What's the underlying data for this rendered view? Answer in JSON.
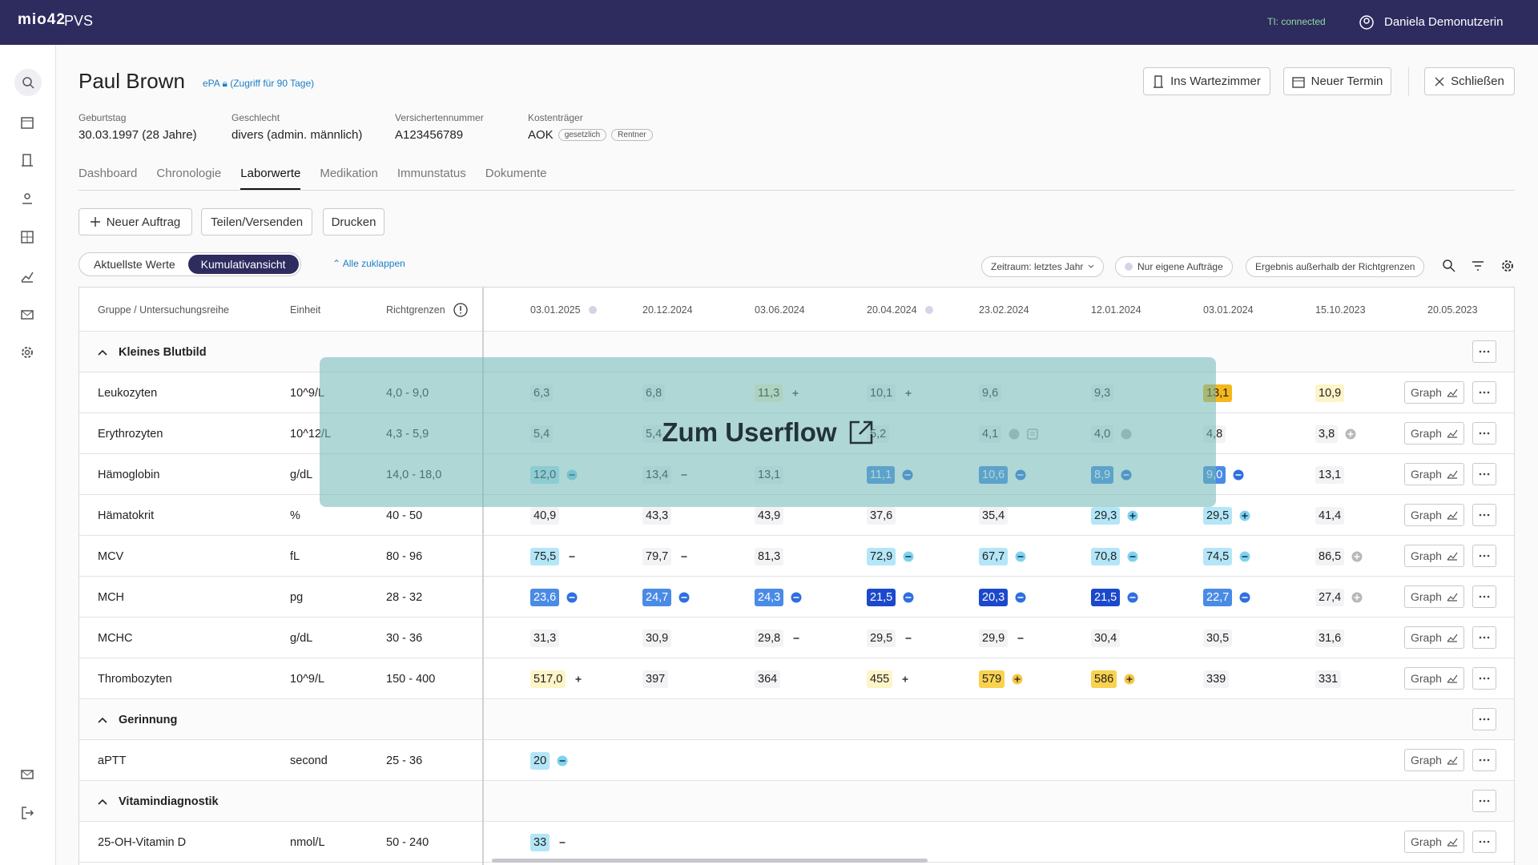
{
  "app": {
    "logo": "mio42",
    "name": "PVS",
    "ti_status": "TI: connected",
    "user": "Daniela Demonutzerin"
  },
  "patient": {
    "name": "Paul Brown",
    "epa": "ePA",
    "epa_access": "(Zugriff für 90 Tage)",
    "fields": [
      {
        "label": "Geburtstag",
        "value": "30.03.1997 (28 Jahre)"
      },
      {
        "label": "Geschlecht",
        "value": "divers (admin. männlich)"
      },
      {
        "label": "Versichertennummer",
        "value": "A123456789"
      },
      {
        "label": "Kostenträger",
        "value": "AOK",
        "badges": [
          "gesetzlich",
          "Rentner"
        ]
      }
    ]
  },
  "actions": [
    "Ins Wartezimmer",
    "Neuer Termin",
    "Schließen"
  ],
  "tabs": [
    {
      "label": "Dashboard"
    },
    {
      "label": "Chronologie"
    },
    {
      "label": "Laborwerte",
      "active": true
    },
    {
      "label": "Medikation"
    },
    {
      "label": "Immunstatus"
    },
    {
      "label": "Dokumente"
    }
  ],
  "toolbar": [
    "Neuer Auftrag",
    "Teilen/Versenden",
    "Drucken"
  ],
  "views": [
    {
      "label": "Aktuellste Werte"
    },
    {
      "label": "Kumulativansicht",
      "active": true
    }
  ],
  "collapse_all": "Alle zuklappen",
  "filters": [
    "Zeitraum: letztes Jahr",
    "Nur eigene Aufträge",
    "Ergebnis außerhalb der Richtgrenzen"
  ],
  "table": {
    "columns": [
      "Gruppe / Untersuchungsreihe",
      "Einheit",
      "Richtgrenzen"
    ],
    "dates": [
      {
        "label": "03.01.2025",
        "dot": true
      },
      {
        "label": "20.12.2024"
      },
      {
        "label": "03.06.2024"
      },
      {
        "label": "20.04.2024",
        "dot": true
      },
      {
        "label": "23.02.2024"
      },
      {
        "label": "12.01.2024"
      },
      {
        "label": "03.01.2024"
      },
      {
        "label": "15.10.2023"
      },
      {
        "label": "20.05.2023"
      }
    ],
    "graph_button": "Graph",
    "groups": [
      {
        "name": "Kleines Blutbild",
        "rows": [
          {
            "name": "Leukozyten",
            "unit": "10^9/L",
            "range": "4,0 - 9,0",
            "values": [
              {
                "v": "6,3"
              },
              {
                "v": "6,8"
              },
              {
                "v": "11,3",
                "level": "h1",
                "icon": "plus"
              },
              {
                "v": "10,1",
                "icon": "plus"
              },
              {
                "v": "9,6"
              },
              {
                "v": "9,3"
              },
              {
                "v": "13,1",
                "level": "h3"
              },
              {
                "v": "10,9",
                "level": "h1"
              },
              null
            ]
          },
          {
            "name": "Erythrozyten",
            "unit": "10^12/L",
            "range": "4,3 - 5,9",
            "values": [
              {
                "v": "5,4"
              },
              {
                "v": "5,4"
              },
              null,
              {
                "v": "5,2"
              },
              {
                "v": "4,1",
                "icon": "circle",
                "note": true
              },
              {
                "v": "4,0",
                "icon": "circle"
              },
              {
                "v": "4,8"
              },
              {
                "v": "3,8",
                "icon": "circle-plus"
              },
              null
            ]
          },
          {
            "name": "Hämoglobin",
            "unit": "g/dL",
            "range": "14,0 - 18,0",
            "values": [
              {
                "v": "12,0",
                "level": "l1",
                "icon": "circle-minus"
              },
              {
                "v": "13,4",
                "icon": "minus"
              },
              {
                "v": "13,1"
              },
              {
                "v": "11,1",
                "level": "l2",
                "icon": "circle-minus"
              },
              {
                "v": "10,6",
                "level": "l2",
                "icon": "circle-minus"
              },
              {
                "v": "8,9",
                "level": "l2",
                "icon": "circle-minus"
              },
              {
                "v": "9,0",
                "level": "l2",
                "icon": "circle-minus"
              },
              {
                "v": "13,1"
              },
              null
            ]
          },
          {
            "name": "Hämatokrit",
            "unit": "%",
            "range": "40 - 50",
            "values": [
              {
                "v": "40,9"
              },
              {
                "v": "43,3"
              },
              {
                "v": "43,9"
              },
              {
                "v": "37,6"
              },
              {
                "v": "35,4"
              },
              {
                "v": "29,3",
                "level": "l1",
                "icon": "circle-plus"
              },
              {
                "v": "29,5",
                "level": "l1",
                "icon": "circle-plus"
              },
              {
                "v": "41,4"
              },
              null
            ]
          },
          {
            "name": "MCV",
            "unit": "fL",
            "range": "80 - 96",
            "values": [
              {
                "v": "75,5",
                "level": "l1",
                "icon": "minus"
              },
              {
                "v": "79,7",
                "icon": "minus"
              },
              {
                "v": "81,3"
              },
              {
                "v": "72,9",
                "level": "l1",
                "icon": "circle-minus"
              },
              {
                "v": "67,7",
                "level": "l1",
                "icon": "circle-minus"
              },
              {
                "v": "70,8",
                "level": "l1",
                "icon": "circle-minus"
              },
              {
                "v": "74,5",
                "level": "l1",
                "icon": "circle-minus"
              },
              {
                "v": "86,5",
                "icon": "circle-plus"
              },
              null
            ]
          },
          {
            "name": "MCH",
            "unit": "pg",
            "range": "28 - 32",
            "values": [
              {
                "v": "23,6",
                "level": "l2",
                "icon": "circle-minus"
              },
              {
                "v": "24,7",
                "level": "l2",
                "icon": "circle-minus"
              },
              {
                "v": "24,3",
                "level": "l2",
                "icon": "circle-minus"
              },
              {
                "v": "21,5",
                "level": "l3",
                "icon": "circle-minus"
              },
              {
                "v": "20,3",
                "level": "l3",
                "icon": "circle-minus"
              },
              {
                "v": "21,5",
                "level": "l3",
                "icon": "circle-minus"
              },
              {
                "v": "22,7",
                "level": "l2",
                "icon": "circle-minus"
              },
              {
                "v": "27,4",
                "icon": "circle-plus"
              },
              null
            ]
          },
          {
            "name": "MCHC",
            "unit": "g/dL",
            "range": "30 - 36",
            "values": [
              {
                "v": "31,3"
              },
              {
                "v": "30,9"
              },
              {
                "v": "29,8",
                "icon": "minus"
              },
              {
                "v": "29,5",
                "icon": "minus"
              },
              {
                "v": "29,9",
                "icon": "minus"
              },
              {
                "v": "30,4"
              },
              {
                "v": "30,5"
              },
              {
                "v": "31,6"
              },
              null
            ]
          },
          {
            "name": "Thrombozyten",
            "unit": "10^9/L",
            "range": "150 - 400",
            "values": [
              {
                "v": "517,0",
                "level": "h1",
                "icon": "plus"
              },
              {
                "v": "397"
              },
              {
                "v": "364"
              },
              {
                "v": "455",
                "level": "h1",
                "icon": "plus"
              },
              {
                "v": "579",
                "level": "h2",
                "icon": "circle-plus"
              },
              {
                "v": "586",
                "level": "h2",
                "icon": "circle-plus"
              },
              {
                "v": "339"
              },
              {
                "v": "331"
              },
              null
            ]
          }
        ]
      },
      {
        "name": "Gerinnung",
        "rows": [
          {
            "name": "aPTT",
            "unit": "second",
            "range": "25 - 36",
            "values": [
              {
                "v": "20",
                "level": "l1",
                "icon": "circle-minus"
              },
              null,
              null,
              null,
              null,
              null,
              null,
              null,
              null
            ]
          }
        ]
      },
      {
        "name": "Vitamindiagnostik",
        "rows": [
          {
            "name": "25-OH-Vitamin D",
            "unit": "nmol/L",
            "range": "50 - 240",
            "values": [
              {
                "v": "33",
                "level": "l1",
                "icon": "minus"
              },
              null,
              null,
              null,
              null,
              null,
              null,
              null,
              null
            ]
          }
        ]
      }
    ]
  },
  "overlay": "Zum Userflow"
}
